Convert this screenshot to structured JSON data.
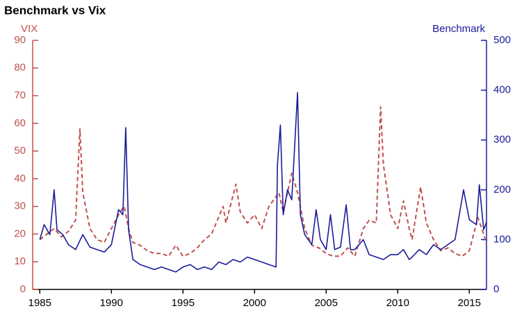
{
  "chart_data": {
    "type": "line",
    "title": "Benchmark vs Vix",
    "y_label": "VIX",
    "y2_label": "Benchmark",
    "xlim": [
      1984.5,
      2016.2
    ],
    "xticks": [
      1985,
      1990,
      1995,
      2000,
      2005,
      2010,
      2015
    ],
    "ylim": [
      0,
      90
    ],
    "yticks": [
      0,
      10,
      20,
      30,
      40,
      50,
      60,
      70,
      80,
      90
    ],
    "y2lim": [
      0,
      500
    ],
    "y2ticks": [
      0,
      100,
      200,
      300,
      400,
      500
    ],
    "y_color": "#c0504d",
    "y2_color": "#1a1a99",
    "series": [
      {
        "name": "VIX",
        "color": "#c0504d",
        "dashed": true,
        "x": [
          1985,
          1985.5,
          1986,
          1986.5,
          1987,
          1987.5,
          1987.8,
          1988,
          1988.5,
          1989,
          1989.5,
          1990,
          1990.6,
          1990.9,
          1991.2,
          1991.5,
          1992,
          1992.5,
          1993,
          1993.5,
          1994,
          1994.5,
          1995,
          1995.5,
          1996,
          1996.5,
          1997,
          1997.8,
          1998,
          1998.7,
          1999,
          1999.5,
          2000,
          2000.5,
          2001,
          2001.7,
          2002,
          2002.6,
          2003,
          2003.5,
          2004,
          2004.5,
          2005,
          2005.5,
          2006,
          2006.5,
          2007,
          2007.6,
          2008,
          2008.5,
          2008.8,
          2009,
          2009.5,
          2010,
          2010.4,
          2010.8,
          2011,
          2011.6,
          2012,
          2012.5,
          2013,
          2013.5,
          2014,
          2014.5,
          2015,
          2015.6,
          2016,
          2016.2
        ],
        "values": [
          18,
          20,
          22,
          19,
          21,
          25,
          58,
          35,
          22,
          18,
          17,
          22,
          28,
          30,
          22,
          17,
          16,
          14,
          13,
          13,
          12,
          16,
          12,
          13,
          15,
          18,
          20,
          30,
          24,
          38,
          28,
          24,
          27,
          22,
          30,
          35,
          28,
          42,
          35,
          22,
          16,
          15,
          13,
          12,
          12,
          15,
          12,
          22,
          25,
          24,
          66,
          45,
          27,
          22,
          32,
          22,
          18,
          37,
          24,
          18,
          14,
          15,
          13,
          12,
          14,
          26,
          20,
          16
        ]
      },
      {
        "name": "Benchmark",
        "color": "#1a1a99",
        "axis": "y2",
        "x": [
          1985,
          1985.3,
          1985.7,
          1986,
          1986.2,
          1986.6,
          1987,
          1987.5,
          1988,
          1988.5,
          1989,
          1989.5,
          1990,
          1990.5,
          1990.8,
          1991,
          1991.2,
          1991.5,
          1992,
          1992.5,
          1993,
          1993.5,
          1994,
          1994.5,
          1995,
          1995.5,
          1996,
          1996.5,
          1997,
          1997.5,
          1998,
          1998.5,
          1999,
          1999.5,
          2000,
          2000.5,
          2001,
          2001.5,
          2001.6,
          2001.8,
          2002,
          2002.3,
          2002.6,
          2003,
          2003.2,
          2003.5,
          2004,
          2004.3,
          2004.6,
          2005,
          2005.3,
          2005.6,
          2006,
          2006.4,
          2006.7,
          2007,
          2007.6,
          2008,
          2008.5,
          2009,
          2009.5,
          2010,
          2010.4,
          2010.8,
          2011,
          2011.5,
          2012,
          2012.5,
          2013,
          2013.5,
          2014,
          2014.3,
          2014.6,
          2015,
          2015.5,
          2015.7,
          2016,
          2016.2
        ],
        "values": [
          100,
          130,
          110,
          200,
          120,
          110,
          90,
          80,
          110,
          85,
          80,
          75,
          90,
          160,
          150,
          325,
          120,
          60,
          50,
          45,
          40,
          45,
          40,
          35,
          45,
          50,
          40,
          45,
          40,
          55,
          50,
          60,
          55,
          65,
          60,
          55,
          50,
          45,
          250,
          330,
          150,
          200,
          180,
          395,
          150,
          110,
          90,
          160,
          100,
          80,
          150,
          80,
          85,
          170,
          80,
          80,
          100,
          70,
          65,
          60,
          70,
          70,
          80,
          60,
          65,
          80,
          70,
          90,
          80,
          90,
          100,
          150,
          200,
          140,
          130,
          210,
          120,
          135
        ]
      }
    ]
  }
}
